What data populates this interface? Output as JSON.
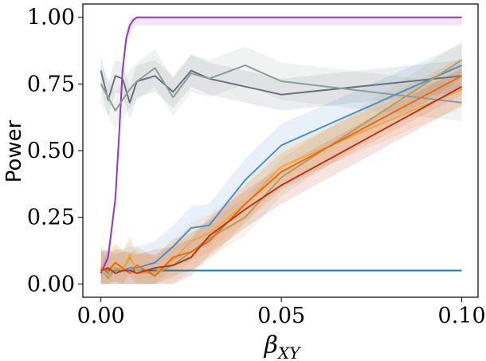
{
  "chart_data": {
    "type": "line",
    "title": "",
    "xlabel": "β",
    "xlabel_sub": "XY",
    "ylabel": "Power",
    "xlim": [
      -0.005,
      0.1045
    ],
    "ylim": [
      -0.05,
      1.05
    ],
    "xticks": [
      0.0,
      0.05,
      0.1
    ],
    "xtick_labels": [
      "0.00",
      "0.05",
      "0.10"
    ],
    "yticks": [
      0.0,
      0.25,
      0.5,
      0.75,
      1.0
    ],
    "ytick_labels": [
      "0.00",
      "0.25",
      "0.50",
      "0.75",
      "1.00"
    ],
    "grid": false,
    "legend": "none",
    "series": [
      {
        "name": "purple",
        "color": "#8e3bbf",
        "x": [
          0,
          0.002,
          0.004,
          0.005,
          0.006,
          0.007,
          0.008,
          0.009,
          0.01,
          0.015,
          0.02,
          0.03,
          0.04,
          0.05,
          0.1
        ],
        "y": [
          0.04,
          0.1,
          0.32,
          0.55,
          0.8,
          0.92,
          0.97,
          0.99,
          1.0,
          1.0,
          1.0,
          1.0,
          1.0,
          1.0,
          1.0
        ],
        "band": 0.03
      },
      {
        "name": "dark-gray",
        "color": "#6b727c",
        "x": [
          0,
          0.002,
          0.004,
          0.006,
          0.008,
          0.01,
          0.015,
          0.02,
          0.025,
          0.03,
          0.05,
          0.1
        ],
        "y": [
          0.8,
          0.69,
          0.78,
          0.77,
          0.68,
          0.76,
          0.78,
          0.72,
          0.8,
          0.77,
          0.71,
          0.78
        ],
        "band": 0.06
      },
      {
        "name": "light-gray",
        "color": "#8f9d9a",
        "x": [
          0,
          0.002,
          0.004,
          0.006,
          0.008,
          0.01,
          0.015,
          0.02,
          0.025,
          0.03,
          0.04,
          0.05,
          0.1
        ],
        "y": [
          0.75,
          0.7,
          0.65,
          0.69,
          0.73,
          0.76,
          0.81,
          0.7,
          0.79,
          0.77,
          0.82,
          0.76,
          0.68
        ],
        "band": 0.07
      },
      {
        "name": "teal",
        "color": "#1f77a8",
        "x": [
          0,
          0.1
        ],
        "y": [
          0.05,
          0.05
        ],
        "band": 0.0
      },
      {
        "name": "blue",
        "color": "#4a90d2",
        "x": [
          0,
          0.002,
          0.004,
          0.006,
          0.008,
          0.01,
          0.015,
          0.02,
          0.025,
          0.03,
          0.04,
          0.05,
          0.1
        ],
        "y": [
          0.06,
          0.04,
          0.05,
          0.05,
          0.06,
          0.06,
          0.08,
          0.14,
          0.21,
          0.22,
          0.39,
          0.52,
          0.82
        ],
        "band": 0.08
      },
      {
        "name": "olive",
        "color": "#b0a060",
        "x": [
          0,
          0.002,
          0.004,
          0.006,
          0.008,
          0.01,
          0.015,
          0.02,
          0.025,
          0.03,
          0.04,
          0.05,
          0.1
        ],
        "y": [
          0.06,
          0.02,
          0.06,
          0.05,
          0.1,
          0.05,
          0.04,
          0.07,
          0.12,
          0.17,
          0.25,
          0.4,
          0.84
        ],
        "band": 0.07
      },
      {
        "name": "yellow",
        "color": "#f2a83c",
        "x": [
          0,
          0.002,
          0.004,
          0.006,
          0.008,
          0.01,
          0.015,
          0.02,
          0.025,
          0.03,
          0.04,
          0.05,
          0.1
        ],
        "y": [
          0.06,
          0.03,
          0.08,
          0.05,
          0.11,
          0.04,
          0.04,
          0.09,
          0.16,
          0.19,
          0.3,
          0.44,
          0.73
        ],
        "band": 0.07
      },
      {
        "name": "orange",
        "color": "#ee6a10",
        "x": [
          0,
          0.002,
          0.004,
          0.006,
          0.008,
          0.01,
          0.015,
          0.02,
          0.025,
          0.03,
          0.04,
          0.05,
          0.1
        ],
        "y": [
          0.06,
          0.05,
          0.08,
          0.06,
          0.04,
          0.07,
          0.03,
          0.1,
          0.12,
          0.16,
          0.3,
          0.42,
          0.78
        ],
        "band": 0.07
      },
      {
        "name": "red",
        "color": "#c0321e",
        "x": [
          0,
          0.002,
          0.004,
          0.006,
          0.008,
          0.01,
          0.015,
          0.02,
          0.025,
          0.03,
          0.04,
          0.05,
          0.1
        ],
        "y": [
          0.05,
          0.06,
          0.04,
          0.05,
          0.05,
          0.04,
          0.06,
          0.07,
          0.1,
          0.18,
          0.28,
          0.37,
          0.74
        ],
        "band": 0.07
      }
    ]
  }
}
